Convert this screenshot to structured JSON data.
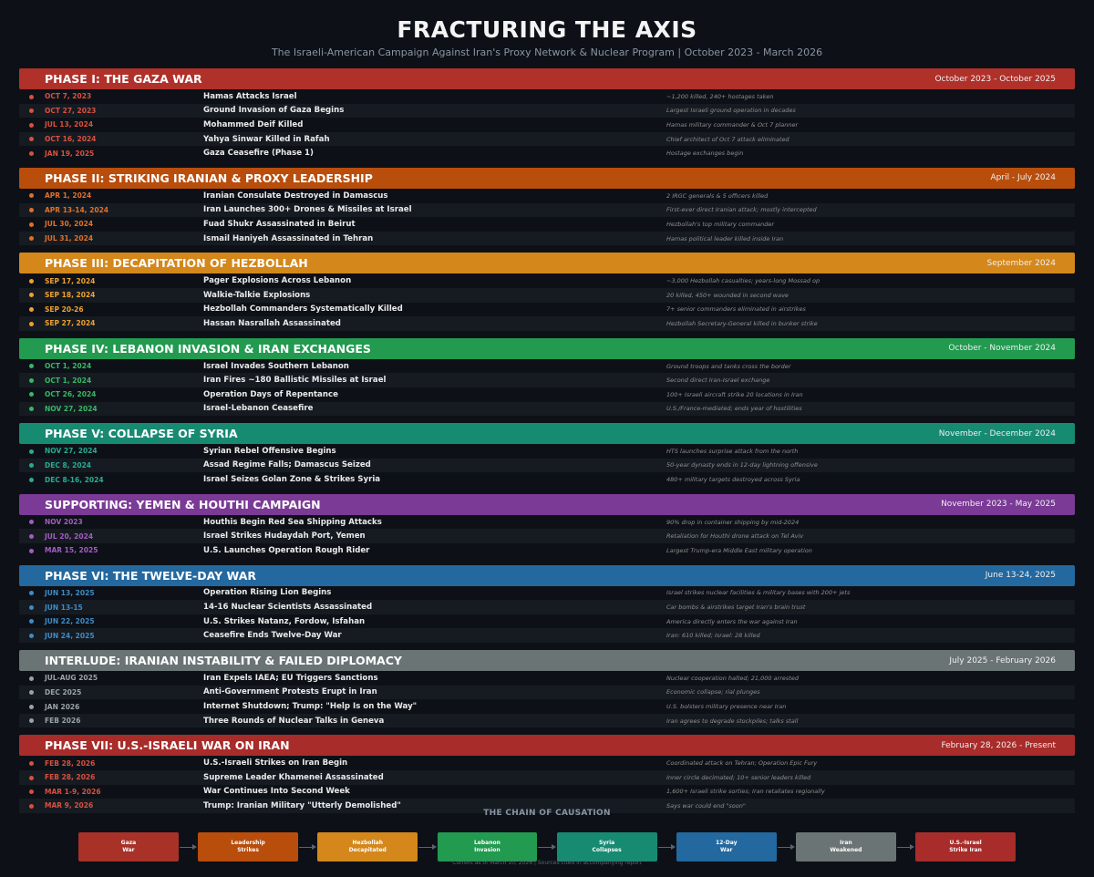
{
  "title": "FRACTURING THE AXIS",
  "subtitle": "The Israeli-American Campaign Against Iran's Proxy Network & Nuclear Program  |  October 2023 - March 2026",
  "chart_data": {
    "type": "table",
    "phases": [
      {
        "title": "PHASE I: THE GAZA WAR",
        "dates": "October 2023 - October 2025",
        "color": "#b0302a",
        "date_color": "#d9503f",
        "events": [
          {
            "date": "OCT 7, 2023",
            "event": "Hamas Attacks Israel",
            "note": "~1,200 killed, 240+ hostages taken"
          },
          {
            "date": "OCT 27, 2023",
            "event": "Ground Invasion of Gaza Begins",
            "note": "Largest Israeli ground operation in decades"
          },
          {
            "date": "JUL 13, 2024",
            "event": "Mohammed Deif Killed",
            "note": "Hamas military commander & Oct 7 planner"
          },
          {
            "date": "OCT 16, 2024",
            "event": "Yahya Sinwar Killed in Rafah",
            "note": "Chief architect of Oct 7 attack eliminated"
          },
          {
            "date": "JAN 19, 2025",
            "event": "Gaza Ceasefire (Phase 1)",
            "note": "Hostage exchanges begin"
          }
        ]
      },
      {
        "title": "PHASE II: STRIKING IRANIAN & PROXY LEADERSHIP",
        "dates": "April - July 2024",
        "color": "#b84d0c",
        "date_color": "#e0702a",
        "events": [
          {
            "date": "APR 1, 2024",
            "event": "Iranian Consulate Destroyed in Damascus",
            "note": "2 IRGC generals & 5 officers killed"
          },
          {
            "date": "APR 13-14, 2024",
            "event": "Iran Launches 300+ Drones & Missiles at Israel",
            "note": "First-ever direct Iranian attack; mostly intercepted"
          },
          {
            "date": "JUL 30, 2024",
            "event": "Fuad Shukr Assassinated in Beirut",
            "note": "Hezbollah's top military commander"
          },
          {
            "date": "JUL 31, 2024",
            "event": "Ismail Haniyeh Assassinated in Tehran",
            "note": "Hamas political leader killed inside Iran"
          }
        ]
      },
      {
        "title": "PHASE III: DECAPITATION OF HEZBOLLAH",
        "dates": "September 2024",
        "color": "#d4871a",
        "date_color": "#f0a22e",
        "events": [
          {
            "date": "SEP 17, 2024",
            "event": "Pager Explosions Across Lebanon",
            "note": "~3,000 Hezbollah casualties; years-long Mossad op"
          },
          {
            "date": "SEP 18, 2024",
            "event": "Walkie-Talkie Explosions",
            "note": "20 killed, 450+ wounded in second wave"
          },
          {
            "date": "SEP 20-26",
            "event": "Hezbollah Commanders Systematically Killed",
            "note": "7+ senior commanders eliminated in airstrikes"
          },
          {
            "date": "SEP 27, 2024",
            "event": "Hassan Nasrallah Assassinated",
            "note": "Hezbollah Secretary-General killed in bunker strike"
          }
        ]
      },
      {
        "title": "PHASE IV: LEBANON INVASION & IRAN EXCHANGES",
        "dates": "October - November 2024",
        "color": "#229a50",
        "date_color": "#37b866",
        "events": [
          {
            "date": "OCT 1, 2024",
            "event": "Israel Invades Southern Lebanon",
            "note": "Ground troops and tanks cross the border"
          },
          {
            "date": "OCT 1, 2024",
            "event": "Iran Fires ~180 Ballistic Missiles at Israel",
            "note": "Second direct Iran-Israel exchange"
          },
          {
            "date": "OCT 26, 2024",
            "event": "Operation Days of Repentance",
            "note": "100+ Israeli aircraft strike 20 locations in Iran"
          },
          {
            "date": "NOV 27, 2024",
            "event": "Israel-Lebanon Ceasefire",
            "note": "U.S./France-mediated; ends year of hostilities"
          }
        ]
      },
      {
        "title": "PHASE V: COLLAPSE OF SYRIA",
        "dates": "November - December 2024",
        "color": "#178a72",
        "date_color": "#26ad91",
        "events": [
          {
            "date": "NOV 27, 2024",
            "event": "Syrian Rebel Offensive Begins",
            "note": "HTS launches surprise attack from the north"
          },
          {
            "date": "DEC 8, 2024",
            "event": "Assad Regime Falls; Damascus Seized",
            "note": "50-year dynasty ends in 12-day lightning offensive"
          },
          {
            "date": "DEC 8-16, 2024",
            "event": "Israel Seizes Golan Zone & Strikes Syria",
            "note": "480+ military targets destroyed across Syria"
          }
        ]
      },
      {
        "title": "SUPPORTING: YEMEN & HOUTHI CAMPAIGN",
        "dates": "November 2023 - May 2025",
        "color": "#7a3a96",
        "date_color": "#a45cc4",
        "events": [
          {
            "date": "NOV 2023",
            "event": "Houthis Begin Red Sea Shipping Attacks",
            "note": "90% drop in container shipping by mid-2024"
          },
          {
            "date": "JUL 20, 2024",
            "event": "Israel Strikes Hudaydah Port, Yemen",
            "note": "Retaliation for Houthi drone attack on Tel Aviv"
          },
          {
            "date": "MAR 15, 2025",
            "event": "U.S. Launches Operation Rough Rider",
            "note": "Largest Trump-era Middle East military operation"
          }
        ]
      },
      {
        "title": "PHASE VI: THE TWELVE-DAY WAR",
        "dates": "June 13-24, 2025",
        "color": "#23689e",
        "date_color": "#3d8cc8",
        "events": [
          {
            "date": "JUN 13, 2025",
            "event": "Operation Rising Lion Begins",
            "note": "Israel strikes nuclear facilities & military bases with 200+ jets"
          },
          {
            "date": "JUN 13-15",
            "event": "14-16 Nuclear Scientists Assassinated",
            "note": "Car bombs & airstrikes target Iran's brain trust"
          },
          {
            "date": "JUN 22, 2025",
            "event": "U.S. Strikes Natanz, Fordow, Isfahan",
            "note": "America directly enters the war against Iran"
          },
          {
            "date": "JUN 24, 2025",
            "event": "Ceasefire Ends Twelve-Day War",
            "note": "Iran: 610 killed; Israel: 28 killed"
          }
        ]
      },
      {
        "title": "INTERLUDE: IRANIAN INSTABILITY & FAILED DIPLOMACY",
        "dates": "July 2025 - February 2026",
        "color": "#6b7474",
        "date_color": "#9aa3a8",
        "events": [
          {
            "date": "JUL-AUG 2025",
            "event": "Iran Expels IAEA; EU Triggers Sanctions",
            "note": "Nuclear cooperation halted; 21,000 arrested"
          },
          {
            "date": "DEC 2025",
            "event": "Anti-Government Protests Erupt in Iran",
            "note": "Economic collapse; rial plunges"
          },
          {
            "date": "JAN 2026",
            "event": "Internet Shutdown; Trump: \"Help Is on the Way\"",
            "note": "U.S. bolsters military presence near Iran"
          },
          {
            "date": "FEB 2026",
            "event": "Three Rounds of Nuclear Talks in Geneva",
            "note": "Iran agrees to degrade stockpiles; talks stall"
          }
        ]
      },
      {
        "title": "PHASE VII: U.S.-ISRAELI WAR ON IRAN",
        "dates": "February 28, 2026 - Present",
        "color": "#a82c2a",
        "date_color": "#d9503f",
        "events": [
          {
            "date": "FEB 28, 2026",
            "event": "U.S.-Israeli Strikes on Iran Begin",
            "note": "Coordinated attack on Tehran; Operation Epic Fury"
          },
          {
            "date": "FEB 28, 2026",
            "event": "Supreme Leader Khamenei Assassinated",
            "note": "Inner circle decimated; 10+ senior leaders killed"
          },
          {
            "date": "MAR 1-9, 2026",
            "event": "War Continues Into Second Week",
            "note": "1,600+ Israeli strike sorties; Iran retaliates regionally"
          },
          {
            "date": "MAR 9, 2026",
            "event": "Trump: Iranian Military \"Utterly Demolished\"",
            "note": "Says war could end \"soon\""
          }
        ]
      }
    ]
  },
  "chain": {
    "title": "THE CHAIN OF CAUSATION",
    "steps": [
      {
        "label": "Gaza\nWar",
        "color": "#a83128"
      },
      {
        "label": "Leadership\nStrikes",
        "color": "#b84d0c"
      },
      {
        "label": "Hezbollah\nDecapitated",
        "color": "#d4871a"
      },
      {
        "label": "Lebanon\nInvasion",
        "color": "#229a50"
      },
      {
        "label": "Syria\nCollapses",
        "color": "#178a72"
      },
      {
        "label": "12-Day\nWar",
        "color": "#23689e"
      },
      {
        "label": "Iran\nWeakened",
        "color": "#6b7474"
      },
      {
        "label": "U.S.-Israel\nStrike Iran",
        "color": "#a82c2a"
      }
    ]
  },
  "footer": "Current as of March 10, 2026  |  Sources cited in accompanying report"
}
